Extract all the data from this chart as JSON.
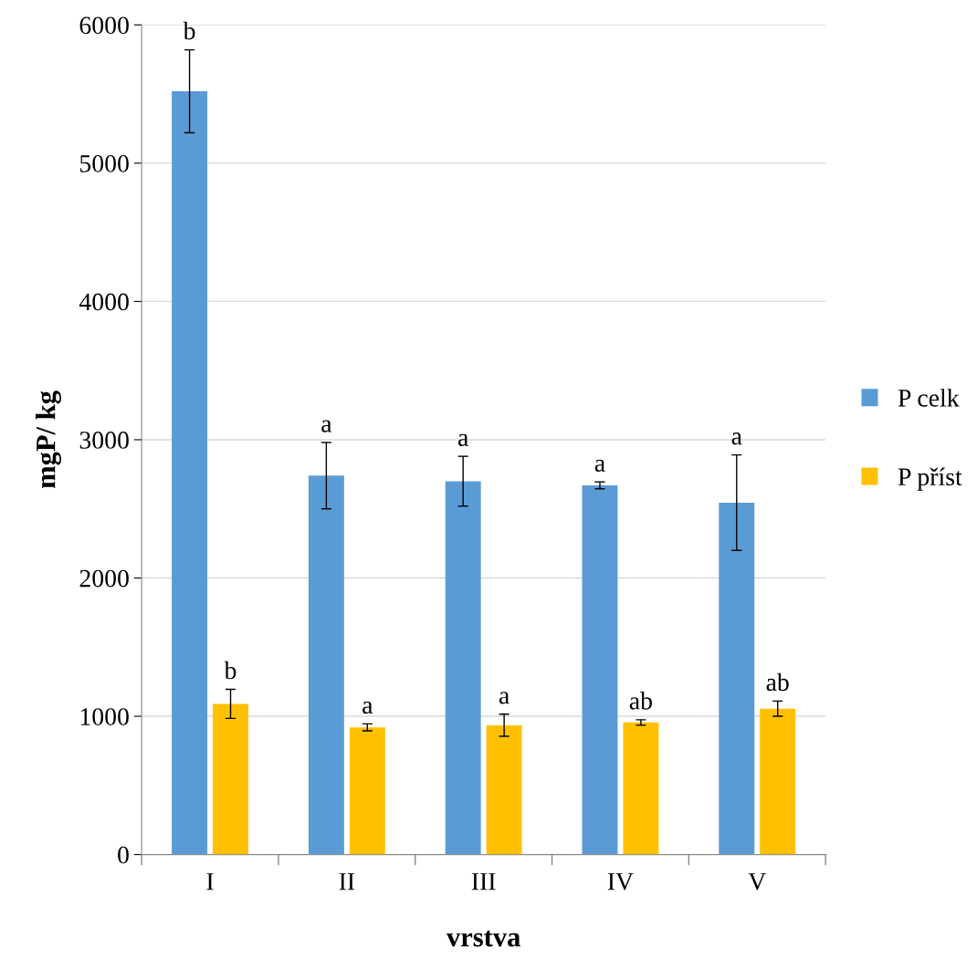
{
  "chart_data": {
    "type": "bar",
    "xlabel": "vrstva",
    "ylabel": "mgP/ kg",
    "categories": [
      "I",
      "II",
      "III",
      "IV",
      "V"
    ],
    "series": [
      {
        "name": "P celk",
        "color": "#5b9bd5",
        "values": [
          5520,
          2740,
          2700,
          2670,
          2545
        ],
        "errors": [
          300,
          240,
          180,
          25,
          345
        ]
      },
      {
        "name": "P příst",
        "color": "#ffc000",
        "values": [
          1090,
          920,
          935,
          955,
          1055
        ],
        "errors": [
          105,
          25,
          80,
          20,
          55
        ]
      }
    ],
    "ylim": [
      0,
      6000
    ],
    "yticks": [
      0,
      1000,
      2000,
      3000,
      4000,
      5000,
      6000
    ],
    "grid": "y",
    "legend": "right",
    "annotations": [
      "b",
      "a",
      "a",
      "a",
      "a",
      "b",
      "a",
      "a",
      "ab",
      "ab"
    ]
  }
}
